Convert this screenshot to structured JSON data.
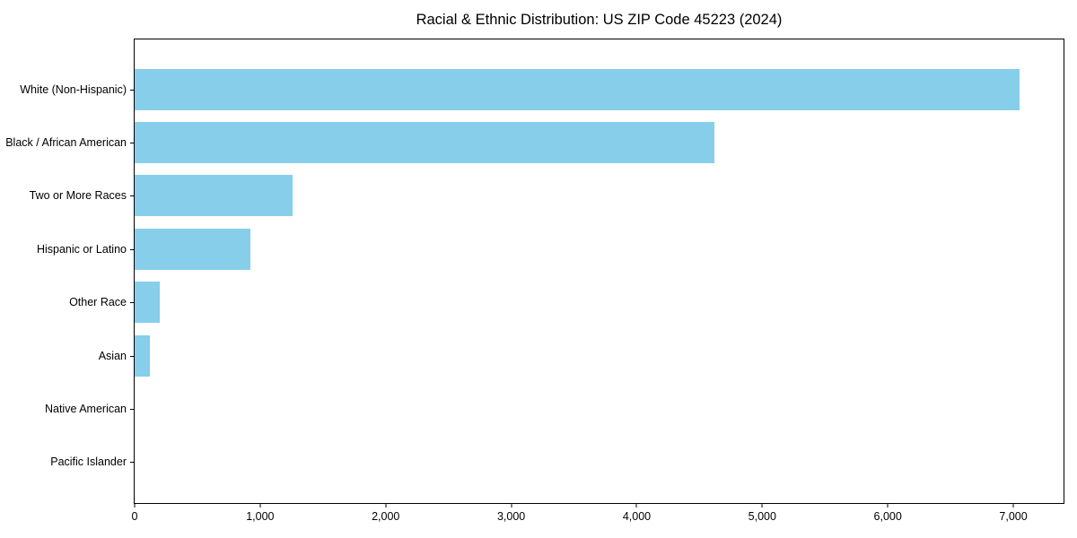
{
  "title": "Racial & Ethnic Distribution: US ZIP Code 45223 (2024)",
  "chart_data": {
    "type": "bar",
    "orientation": "horizontal",
    "title": "Racial & Ethnic Distribution: US ZIP Code 45223 (2024)",
    "categories": [
      "White (Non-Hispanic)",
      "Black / African American",
      "Two or More Races",
      "Hispanic or Latino",
      "Other Race",
      "Asian",
      "Native American",
      "Pacific Islander"
    ],
    "values": [
      7050,
      4620,
      1260,
      920,
      200,
      120,
      0,
      0
    ],
    "xlabel": "",
    "ylabel": "",
    "xlim": [
      0,
      7400
    ],
    "x_ticks": [
      0,
      1000,
      2000,
      3000,
      4000,
      5000,
      6000,
      7000
    ],
    "x_tick_labels": [
      "0",
      "1,000",
      "2,000",
      "3,000",
      "4,000",
      "5,000",
      "6,000",
      "7,000"
    ],
    "bar_color": "#87CEEB",
    "frame_color": "#000000",
    "grid": false,
    "legend": "none"
  }
}
